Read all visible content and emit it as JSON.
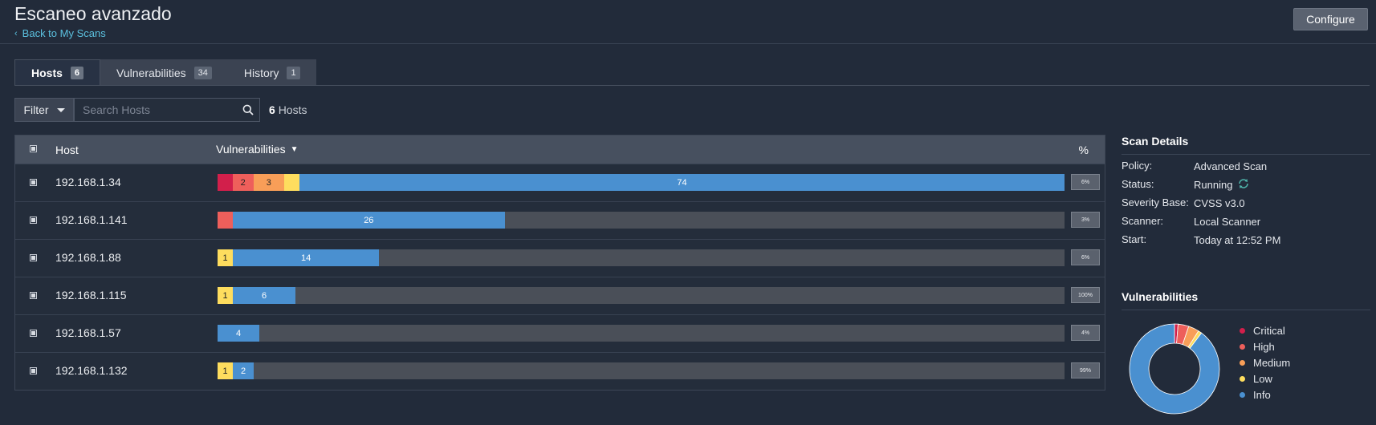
{
  "header": {
    "title": "Escaneo avanzado",
    "back_label": "Back to My Scans",
    "configure_label": "Configure"
  },
  "tabs": [
    {
      "label": "Hosts",
      "count": "6"
    },
    {
      "label": "Vulnerabilities",
      "count": "34"
    },
    {
      "label": "History",
      "count": "1"
    }
  ],
  "toolbar": {
    "filter_label": "Filter",
    "search_placeholder": "Search Hosts",
    "host_count": "6",
    "host_count_suffix": "Hosts"
  },
  "table": {
    "col_host": "Host",
    "col_vulns": "Vulnerabilities",
    "col_pct": "%",
    "sort_indicator": "▼",
    "rows": [
      {
        "host": "192.168.1.34",
        "pct": "6%",
        "segments": [
          {
            "severity": "critical",
            "count": 1,
            "label": ""
          },
          {
            "severity": "high",
            "count": 2,
            "label": "2"
          },
          {
            "severity": "medium",
            "count": 3,
            "label": "3"
          },
          {
            "severity": "low",
            "count": 1,
            "label": ""
          },
          {
            "severity": "info",
            "count": 74,
            "label": "74"
          }
        ]
      },
      {
        "host": "192.168.1.141",
        "pct": "3%",
        "segments": [
          {
            "severity": "high",
            "count": 1,
            "label": ""
          },
          {
            "severity": "info",
            "count": 26,
            "label": "26"
          }
        ]
      },
      {
        "host": "192.168.1.88",
        "pct": "6%",
        "segments": [
          {
            "severity": "low",
            "count": 1,
            "label": "1"
          },
          {
            "severity": "info",
            "count": 14,
            "label": "14"
          }
        ]
      },
      {
        "host": "192.168.1.115",
        "pct": "100%",
        "segments": [
          {
            "severity": "low",
            "count": 1,
            "label": "1"
          },
          {
            "severity": "info",
            "count": 6,
            "label": "6"
          }
        ]
      },
      {
        "host": "192.168.1.57",
        "pct": "4%",
        "segments": [
          {
            "severity": "info",
            "count": 4,
            "label": "4"
          }
        ]
      },
      {
        "host": "192.168.1.132",
        "pct": "99%",
        "segments": [
          {
            "severity": "low",
            "count": 1,
            "label": "1"
          },
          {
            "severity": "info",
            "count": 2,
            "label": "2"
          }
        ]
      }
    ]
  },
  "scan_details": {
    "title": "Scan Details",
    "rows": [
      {
        "label": "Policy:",
        "value": "Advanced Scan"
      },
      {
        "label": "Status:",
        "value": "Running"
      },
      {
        "label": "Severity Base:",
        "value": "CVSS v3.0"
      },
      {
        "label": "Scanner:",
        "value": "Local Scanner"
      },
      {
        "label": "Start:",
        "value": "Today at 12:52 PM"
      }
    ]
  },
  "vuln_summary": {
    "title": "Vulnerabilities",
    "legend": [
      {
        "key": "critical",
        "label": "Critical"
      },
      {
        "key": "high",
        "label": "High"
      },
      {
        "key": "medium",
        "label": "Medium"
      },
      {
        "key": "low",
        "label": "Low"
      },
      {
        "key": "info",
        "label": "Info"
      }
    ],
    "donut": [
      {
        "key": "critical",
        "value": 1
      },
      {
        "key": "high",
        "value": 3
      },
      {
        "key": "medium",
        "value": 3
      },
      {
        "key": "low",
        "value": 1
      },
      {
        "key": "info",
        "value": 70
      }
    ]
  },
  "colors": {
    "critical": "#d21f4b",
    "high": "#ee5f5b",
    "medium": "#f89e58",
    "low": "#fedd5e",
    "info": "#4a90d0",
    "accent": "#5bc0de"
  },
  "icons": {
    "back": "chevron-left-icon",
    "filter_caret": "caret-down-icon",
    "search": "search-icon",
    "status": "refresh-icon"
  }
}
